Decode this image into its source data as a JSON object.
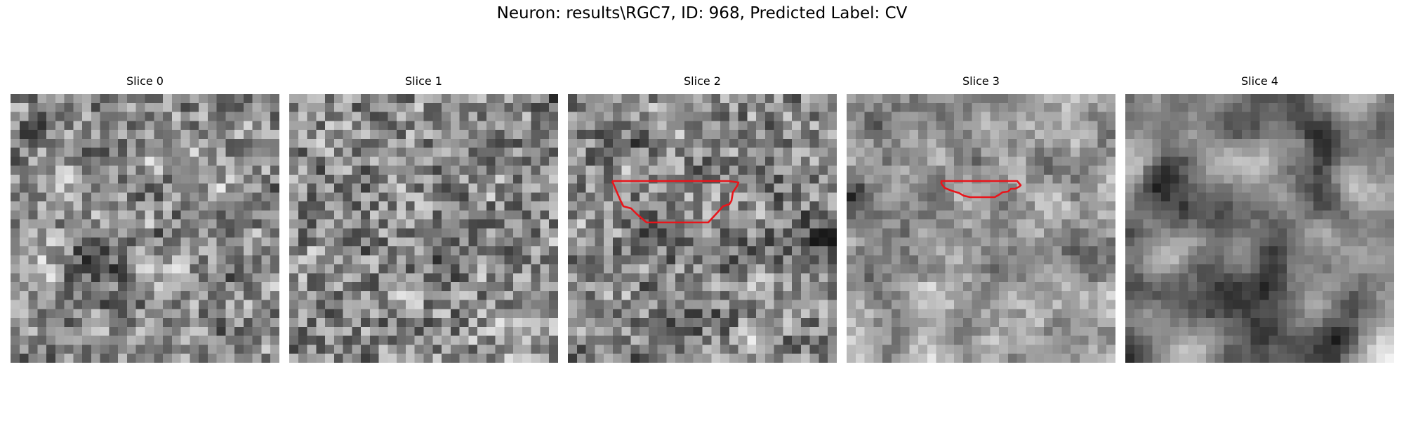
{
  "figure": {
    "title": "Neuron: results\\RGC7, ID: 968, Predicted Label: CV"
  },
  "colors": {
    "contour": "#e8151b",
    "colormap": "gray"
  },
  "slices": [
    {
      "title": "Slice 0",
      "contour_shown": false
    },
    {
      "title": "Slice 1",
      "contour_shown": false
    },
    {
      "title": "Slice 2",
      "contour_shown": true
    },
    {
      "title": "Slice 3",
      "contour_shown": true
    },
    {
      "title": "Slice 4",
      "contour_shown": false
    }
  ]
}
